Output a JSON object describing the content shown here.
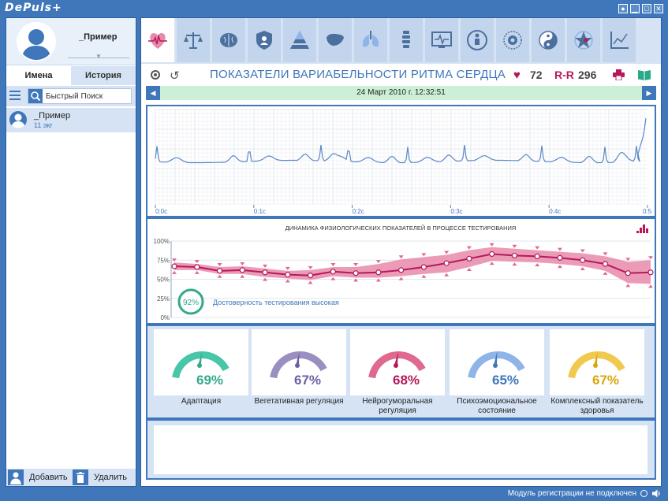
{
  "app": {
    "logo": "DePuls+"
  },
  "window_buttons": [
    "●",
    "▁",
    "□",
    "✕"
  ],
  "sidebar": {
    "profile_name": "_Пример",
    "tabs": [
      "Имена",
      "История"
    ],
    "search_placeholder": "Быстрый Поиск",
    "patients": [
      {
        "name": "_Пример",
        "sub": "11 экг"
      }
    ],
    "add_label": "Добавить",
    "delete_label": "Удалить"
  },
  "toolbar": {
    "icons": [
      "heart-rate-icon",
      "scales-icon",
      "brain-icon",
      "shield-icon",
      "pyramid-icon",
      "liver-icon",
      "lungs-icon",
      "spine-icon",
      "monitor-icon",
      "body-icon",
      "mandala-icon",
      "yin-yang-icon",
      "star-icon",
      "chart-icon"
    ]
  },
  "header": {
    "title": "ПОКАЗАТЕЛИ ВАРИАБЕЛЬНОСТИ РИТМА СЕРДЦА",
    "heart_rate": "72",
    "rr_label": "R-R",
    "rr_value": "296"
  },
  "date": "24 Март 2010 г. 12:32:51",
  "ecg": {
    "x_ticks": [
      "0:0c",
      "0:1c",
      "0:2c",
      "0:3c",
      "0:4c",
      "0:5"
    ]
  },
  "dynamics": {
    "title": "ДИНАМИКА ФИЗИОЛОГИЧЕСКИХ ПОКАЗАТЕЛЕЙ В ПРОЦЕССЕ ТЕСТИРОВАНИЯ",
    "reliability_pct": "92%",
    "reliability_text": "Достоверность тестирования высокая"
  },
  "chart_data": {
    "type": "line",
    "y_ticks": [
      "100%",
      "75%",
      "50%",
      "25%",
      "0%"
    ],
    "ylim": [
      0,
      100
    ],
    "x": [
      1,
      2,
      3,
      4,
      5,
      6,
      7,
      8,
      9,
      10,
      11,
      12,
      13,
      14,
      15,
      16,
      17,
      18,
      19,
      20,
      21,
      22
    ],
    "values": [
      67,
      66,
      61,
      62,
      59,
      56,
      55,
      60,
      58,
      59,
      62,
      66,
      71,
      77,
      83,
      81,
      80,
      78,
      75,
      70,
      58,
      59
    ],
    "band_upper": [
      72,
      70,
      66,
      67,
      64,
      61,
      62,
      66,
      66,
      70,
      76,
      79,
      82,
      88,
      92,
      90,
      88,
      86,
      84,
      80,
      73,
      75
    ],
    "band_lower": [
      62,
      62,
      57,
      57,
      53,
      51,
      49,
      54,
      52,
      52,
      54,
      57,
      59,
      66,
      74,
      73,
      72,
      70,
      67,
      61,
      45,
      44
    ],
    "series_color": "#b5195b",
    "band_color": "#e88aa9"
  },
  "gauges": [
    {
      "value": 69,
      "pct": "69%",
      "label": "Адаптация",
      "color": "#47c7a8",
      "text_color": "#35a88c"
    },
    {
      "value": 67,
      "pct": "67%",
      "label": "Вегетативная регуляция",
      "color": "#9a8fc0",
      "text_color": "#6e5fa3"
    },
    {
      "value": 68,
      "pct": "68%",
      "label": "Нейрогуморальная регуляция",
      "color": "#e0698f",
      "text_color": "#b5195b"
    },
    {
      "value": 65,
      "pct": "65%",
      "label": "Психоэмоциональное состояние",
      "color": "#8fb4e8",
      "text_color": "#3f77ba"
    },
    {
      "value": 67,
      "pct": "67%",
      "label": "Комплексный показатель здоровья",
      "color": "#f1c94e",
      "text_color": "#d9a70e"
    }
  ],
  "status": {
    "text": "Модуль регистрации не подключен"
  }
}
